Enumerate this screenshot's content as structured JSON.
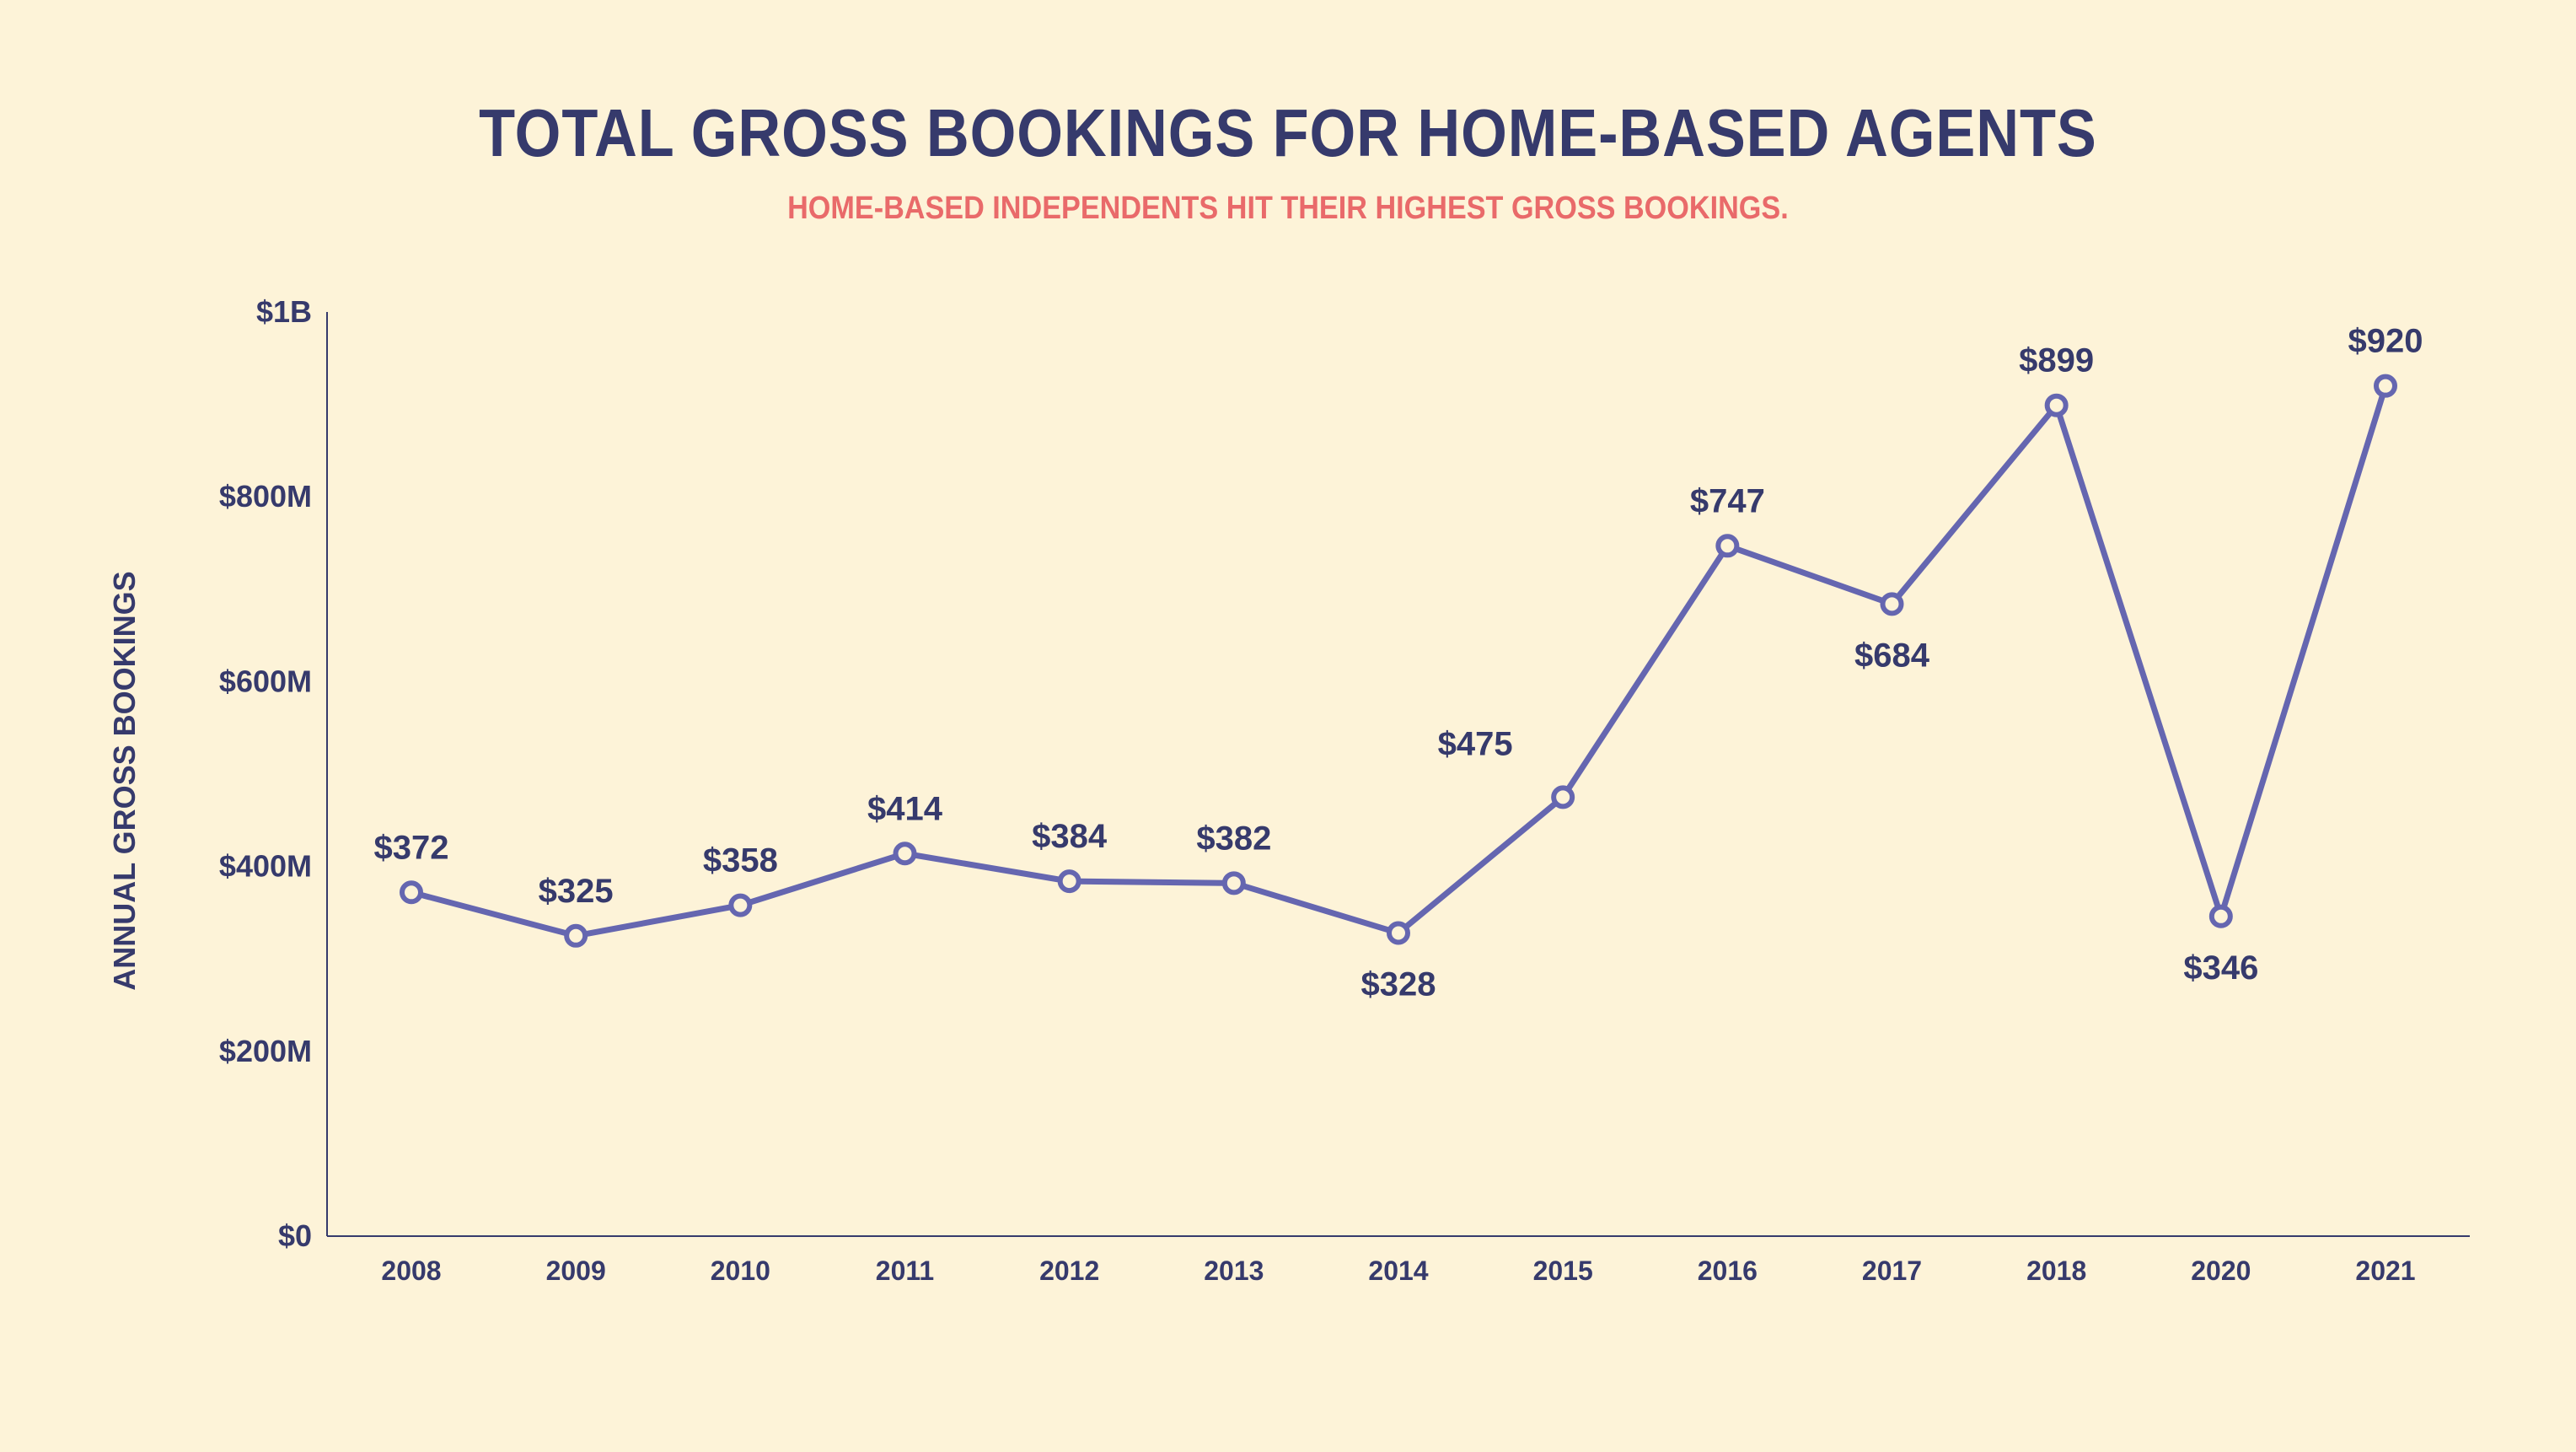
{
  "chart_data": {
    "type": "line",
    "title": "TOTAL GROSS BOOKINGS FOR HOME-BASED AGENTS",
    "subtitle": "HOME-BASED INDEPENDENTS HIT THEIR HIGHEST GROSS BOOKINGS.",
    "xlabel": "",
    "ylabel": "ANNUAL GROSS BOOKINGS",
    "x": [
      "2008",
      "2009",
      "2010",
      "2011",
      "2012",
      "2013",
      "2014",
      "2015",
      "2016",
      "2017",
      "2018",
      "2020",
      "2021"
    ],
    "values": [
      372,
      325,
      358,
      414,
      384,
      382,
      328,
      475,
      747,
      684,
      899,
      346,
      920
    ],
    "data_labels": [
      "$372",
      "$325",
      "$358",
      "$414",
      "$384",
      "$382",
      "$328",
      "$475",
      "$747",
      "$684",
      "$899",
      "$346",
      "$920"
    ],
    "label_positions": [
      "above",
      "above",
      "above",
      "above",
      "above",
      "above",
      "below",
      "above-left",
      "above",
      "below",
      "above",
      "below",
      "above"
    ],
    "ylim": [
      0,
      1000
    ],
    "yticks": [
      0,
      200,
      400,
      600,
      800,
      1000
    ],
    "ytick_labels": [
      "$0",
      "$200M",
      "$400M",
      "$600M",
      "$800M",
      "$1B"
    ],
    "grid": false,
    "line_color": "#6566b0",
    "marker_fill": "#fdf3d8",
    "text_color": "#363a6c",
    "subtitle_color": "#e96a6a",
    "background": "#fdf3d8"
  }
}
